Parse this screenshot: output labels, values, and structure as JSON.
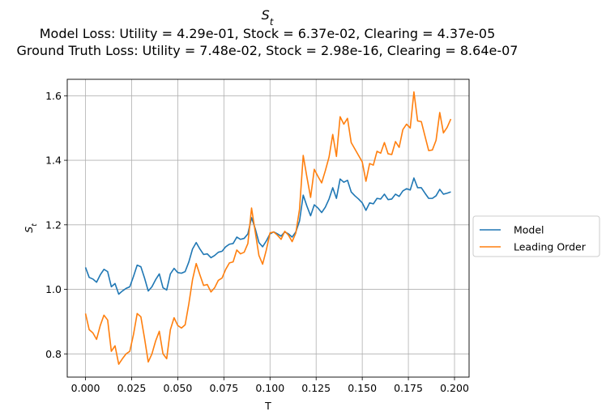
{
  "chart_data": {
    "type": "line",
    "title": "S_t",
    "subtitle_lines": [
      "Model Loss: Utility = 4.29e-01, Stock = 6.37e-02, Clearing = 4.37e-05",
      "Ground Truth Loss: Utility = 7.48e-02, Stock = 2.98e-16, Clearing = 8.64e-07"
    ],
    "xlabel": "T",
    "ylabel": "S_t",
    "xlim": [
      -0.0099,
      0.2079
    ],
    "ylim": [
      0.728,
      1.651
    ],
    "xticks": [
      0.0,
      0.025,
      0.05,
      0.075,
      0.1,
      0.125,
      0.15,
      0.175,
      0.2
    ],
    "xtick_labels": [
      "0.000",
      "0.025",
      "0.050",
      "0.075",
      "0.100",
      "0.125",
      "0.150",
      "0.175",
      "0.200"
    ],
    "yticks": [
      0.8,
      1.0,
      1.2,
      1.4,
      1.6
    ],
    "ytick_labels": [
      "0.8",
      "1.0",
      "1.2",
      "1.4",
      "1.6"
    ],
    "grid": true,
    "legend_position": "outside-right",
    "x": [
      0.0,
      0.002,
      0.004,
      0.006,
      0.008,
      0.01,
      0.012,
      0.014,
      0.016,
      0.018,
      0.02,
      0.022,
      0.024,
      0.026,
      0.028,
      0.03,
      0.032,
      0.034,
      0.036,
      0.038,
      0.04,
      0.042,
      0.044,
      0.046,
      0.048,
      0.05,
      0.052,
      0.054,
      0.056,
      0.058,
      0.06,
      0.062,
      0.064,
      0.066,
      0.068,
      0.07,
      0.072,
      0.074,
      0.076,
      0.078,
      0.08,
      0.082,
      0.084,
      0.086,
      0.088,
      0.09,
      0.092,
      0.094,
      0.096,
      0.098,
      0.1,
      0.102,
      0.104,
      0.106,
      0.108,
      0.11,
      0.112,
      0.114,
      0.116,
      0.118,
      0.12,
      0.122,
      0.124,
      0.126,
      0.128,
      0.13,
      0.132,
      0.134,
      0.136,
      0.138,
      0.14,
      0.142,
      0.144,
      0.146,
      0.148,
      0.15,
      0.152,
      0.154,
      0.156,
      0.158,
      0.16,
      0.162,
      0.164,
      0.166,
      0.168,
      0.17,
      0.172,
      0.174,
      0.176,
      0.178,
      0.18,
      0.182,
      0.184,
      0.186,
      0.188,
      0.19,
      0.192,
      0.194,
      0.196,
      0.198
    ],
    "series": [
      {
        "name": "Model",
        "color": "#1f77b4",
        "values": [
          1.068,
          1.037,
          1.032,
          1.022,
          1.045,
          1.062,
          1.055,
          1.008,
          1.018,
          0.985,
          0.995,
          1.003,
          1.008,
          1.04,
          1.075,
          1.07,
          1.035,
          0.995,
          1.008,
          1.03,
          1.048,
          1.005,
          0.998,
          1.048,
          1.065,
          1.052,
          1.05,
          1.055,
          1.085,
          1.125,
          1.145,
          1.125,
          1.108,
          1.11,
          1.098,
          1.105,
          1.115,
          1.118,
          1.132,
          1.14,
          1.142,
          1.162,
          1.155,
          1.158,
          1.172,
          1.222,
          1.188,
          1.145,
          1.132,
          1.15,
          1.172,
          1.178,
          1.172,
          1.165,
          1.178,
          1.172,
          1.162,
          1.178,
          1.212,
          1.292,
          1.258,
          1.228,
          1.262,
          1.252,
          1.238,
          1.255,
          1.28,
          1.315,
          1.282,
          1.342,
          1.332,
          1.338,
          1.302,
          1.29,
          1.28,
          1.268,
          1.245,
          1.268,
          1.265,
          1.282,
          1.28,
          1.295,
          1.278,
          1.28,
          1.295,
          1.288,
          1.305,
          1.312,
          1.308,
          1.345,
          1.315,
          1.315,
          1.298,
          1.282,
          1.282,
          1.29,
          1.31,
          1.295,
          1.298,
          1.302
        ]
      },
      {
        "name": "Leading Order",
        "color": "#ff7f0e",
        "values": [
          0.925,
          0.875,
          0.865,
          0.845,
          0.888,
          0.92,
          0.905,
          0.808,
          0.825,
          0.768,
          0.785,
          0.8,
          0.808,
          0.86,
          0.925,
          0.915,
          0.848,
          0.775,
          0.8,
          0.84,
          0.87,
          0.8,
          0.785,
          0.875,
          0.912,
          0.888,
          0.88,
          0.89,
          0.955,
          1.03,
          1.08,
          1.045,
          1.012,
          1.015,
          0.992,
          1.005,
          1.028,
          1.035,
          1.062,
          1.082,
          1.085,
          1.122,
          1.11,
          1.115,
          1.142,
          1.252,
          1.178,
          1.105,
          1.078,
          1.122,
          1.175,
          1.178,
          1.168,
          1.155,
          1.18,
          1.168,
          1.148,
          1.175,
          1.248,
          1.415,
          1.348,
          1.285,
          1.372,
          1.35,
          1.33,
          1.368,
          1.41,
          1.48,
          1.412,
          1.535,
          1.512,
          1.53,
          1.455,
          1.435,
          1.415,
          1.395,
          1.335,
          1.39,
          1.385,
          1.428,
          1.422,
          1.455,
          1.42,
          1.418,
          1.458,
          1.44,
          1.495,
          1.512,
          1.5,
          1.612,
          1.522,
          1.52,
          1.475,
          1.43,
          1.432,
          1.462,
          1.548,
          1.485,
          1.502,
          1.528
        ]
      }
    ]
  }
}
